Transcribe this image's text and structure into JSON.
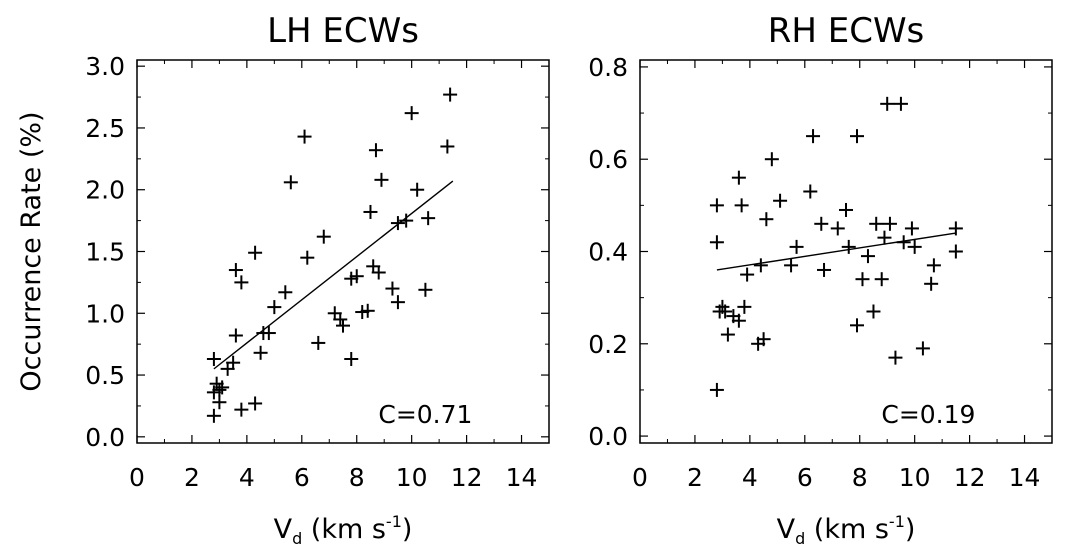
{
  "chart_data": [
    {
      "type": "scatter",
      "title": "LH ECWs",
      "xlabel": "V",
      "xlabel_sub": "d",
      "xlabel_unit_open": " (km s",
      "xlabel_unit_sup": "-1",
      "xlabel_unit_close": ")",
      "ylabel": "Occurrence Rate (%)",
      "xlim": [
        0,
        15
      ],
      "ylim": [
        -0.05,
        3.05
      ],
      "xticks": [
        0,
        2,
        4,
        6,
        8,
        10,
        12,
        14
      ],
      "yticks": [
        "0.0",
        "0.5",
        "1.0",
        "1.5",
        "2.0",
        "2.5",
        "3.0"
      ],
      "annotation": "C=0.71",
      "fit_line": {
        "x": [
          2.8,
          11.5
        ],
        "y": [
          0.55,
          2.07
        ]
      },
      "points": [
        [
          2.8,
          0.63
        ],
        [
          2.8,
          0.36
        ],
        [
          2.8,
          0.17
        ],
        [
          2.9,
          0.43
        ],
        [
          3.0,
          0.38
        ],
        [
          3.0,
          0.28
        ],
        [
          3.1,
          0.4
        ],
        [
          3.3,
          0.55
        ],
        [
          3.5,
          0.6
        ],
        [
          3.6,
          0.82
        ],
        [
          3.6,
          1.35
        ],
        [
          3.8,
          1.25
        ],
        [
          3.8,
          0.22
        ],
        [
          4.3,
          0.27
        ],
        [
          4.3,
          1.49
        ],
        [
          4.5,
          0.68
        ],
        [
          4.6,
          0.84
        ],
        [
          4.8,
          0.84
        ],
        [
          5.0,
          1.05
        ],
        [
          5.4,
          1.17
        ],
        [
          5.6,
          2.06
        ],
        [
          6.1,
          2.43
        ],
        [
          6.2,
          1.45
        ],
        [
          6.6,
          0.76
        ],
        [
          6.8,
          1.62
        ],
        [
          7.2,
          1.0
        ],
        [
          7.4,
          0.95
        ],
        [
          7.5,
          0.9
        ],
        [
          7.8,
          0.63
        ],
        [
          7.8,
          1.28
        ],
        [
          8.0,
          1.3
        ],
        [
          8.2,
          1.01
        ],
        [
          8.4,
          1.02
        ],
        [
          8.5,
          1.82
        ],
        [
          8.6,
          1.38
        ],
        [
          8.7,
          2.32
        ],
        [
          8.8,
          1.33
        ],
        [
          8.9,
          2.08
        ],
        [
          9.3,
          1.2
        ],
        [
          9.5,
          1.09
        ],
        [
          9.5,
          1.73
        ],
        [
          9.8,
          1.75
        ],
        [
          10.0,
          2.62
        ],
        [
          10.2,
          2.0
        ],
        [
          10.5,
          1.19
        ],
        [
          10.6,
          1.77
        ],
        [
          11.3,
          2.35
        ],
        [
          11.4,
          2.77
        ]
      ]
    },
    {
      "type": "scatter",
      "title": "RH ECWs",
      "xlabel": "V",
      "xlabel_sub": "d",
      "xlabel_unit_open": " (km s",
      "xlabel_unit_sup": "-1",
      "xlabel_unit_close": ")",
      "ylabel": "",
      "xlim": [
        0,
        15
      ],
      "ylim": [
        -0.015,
        0.815
      ],
      "xticks": [
        0,
        2,
        4,
        6,
        8,
        10,
        12,
        14
      ],
      "yticks": [
        "0.0",
        "0.2",
        "0.4",
        "0.6",
        "0.8"
      ],
      "annotation": "C=0.19",
      "fit_line": {
        "x": [
          2.8,
          11.5
        ],
        "y": [
          0.36,
          0.44
        ]
      },
      "points": [
        [
          2.8,
          0.5
        ],
        [
          2.8,
          0.42
        ],
        [
          2.8,
          0.1
        ],
        [
          2.9,
          0.27
        ],
        [
          3.0,
          0.28
        ],
        [
          3.1,
          0.27
        ],
        [
          3.2,
          0.22
        ],
        [
          3.4,
          0.26
        ],
        [
          3.6,
          0.25
        ],
        [
          3.6,
          0.56
        ],
        [
          3.7,
          0.5
        ],
        [
          3.8,
          0.28
        ],
        [
          3.9,
          0.35
        ],
        [
          4.3,
          0.2
        ],
        [
          4.4,
          0.37
        ],
        [
          4.5,
          0.21
        ],
        [
          4.6,
          0.47
        ],
        [
          4.8,
          0.6
        ],
        [
          5.1,
          0.51
        ],
        [
          5.5,
          0.37
        ],
        [
          5.7,
          0.41
        ],
        [
          6.2,
          0.53
        ],
        [
          6.3,
          0.65
        ],
        [
          6.6,
          0.46
        ],
        [
          6.7,
          0.36
        ],
        [
          7.2,
          0.45
        ],
        [
          7.5,
          0.49
        ],
        [
          7.6,
          0.41
        ],
        [
          7.9,
          0.65
        ],
        [
          7.9,
          0.24
        ],
        [
          8.1,
          0.34
        ],
        [
          8.3,
          0.39
        ],
        [
          8.5,
          0.27
        ],
        [
          8.6,
          0.46
        ],
        [
          8.8,
          0.34
        ],
        [
          8.9,
          0.43
        ],
        [
          9.0,
          0.72
        ],
        [
          9.1,
          0.46
        ],
        [
          9.3,
          0.17
        ],
        [
          9.5,
          0.72
        ],
        [
          9.6,
          0.42
        ],
        [
          9.9,
          0.45
        ],
        [
          10.0,
          0.41
        ],
        [
          10.3,
          0.19
        ],
        [
          10.6,
          0.33
        ],
        [
          10.7,
          0.37
        ],
        [
          11.5,
          0.4
        ],
        [
          11.5,
          0.45
        ]
      ]
    }
  ]
}
